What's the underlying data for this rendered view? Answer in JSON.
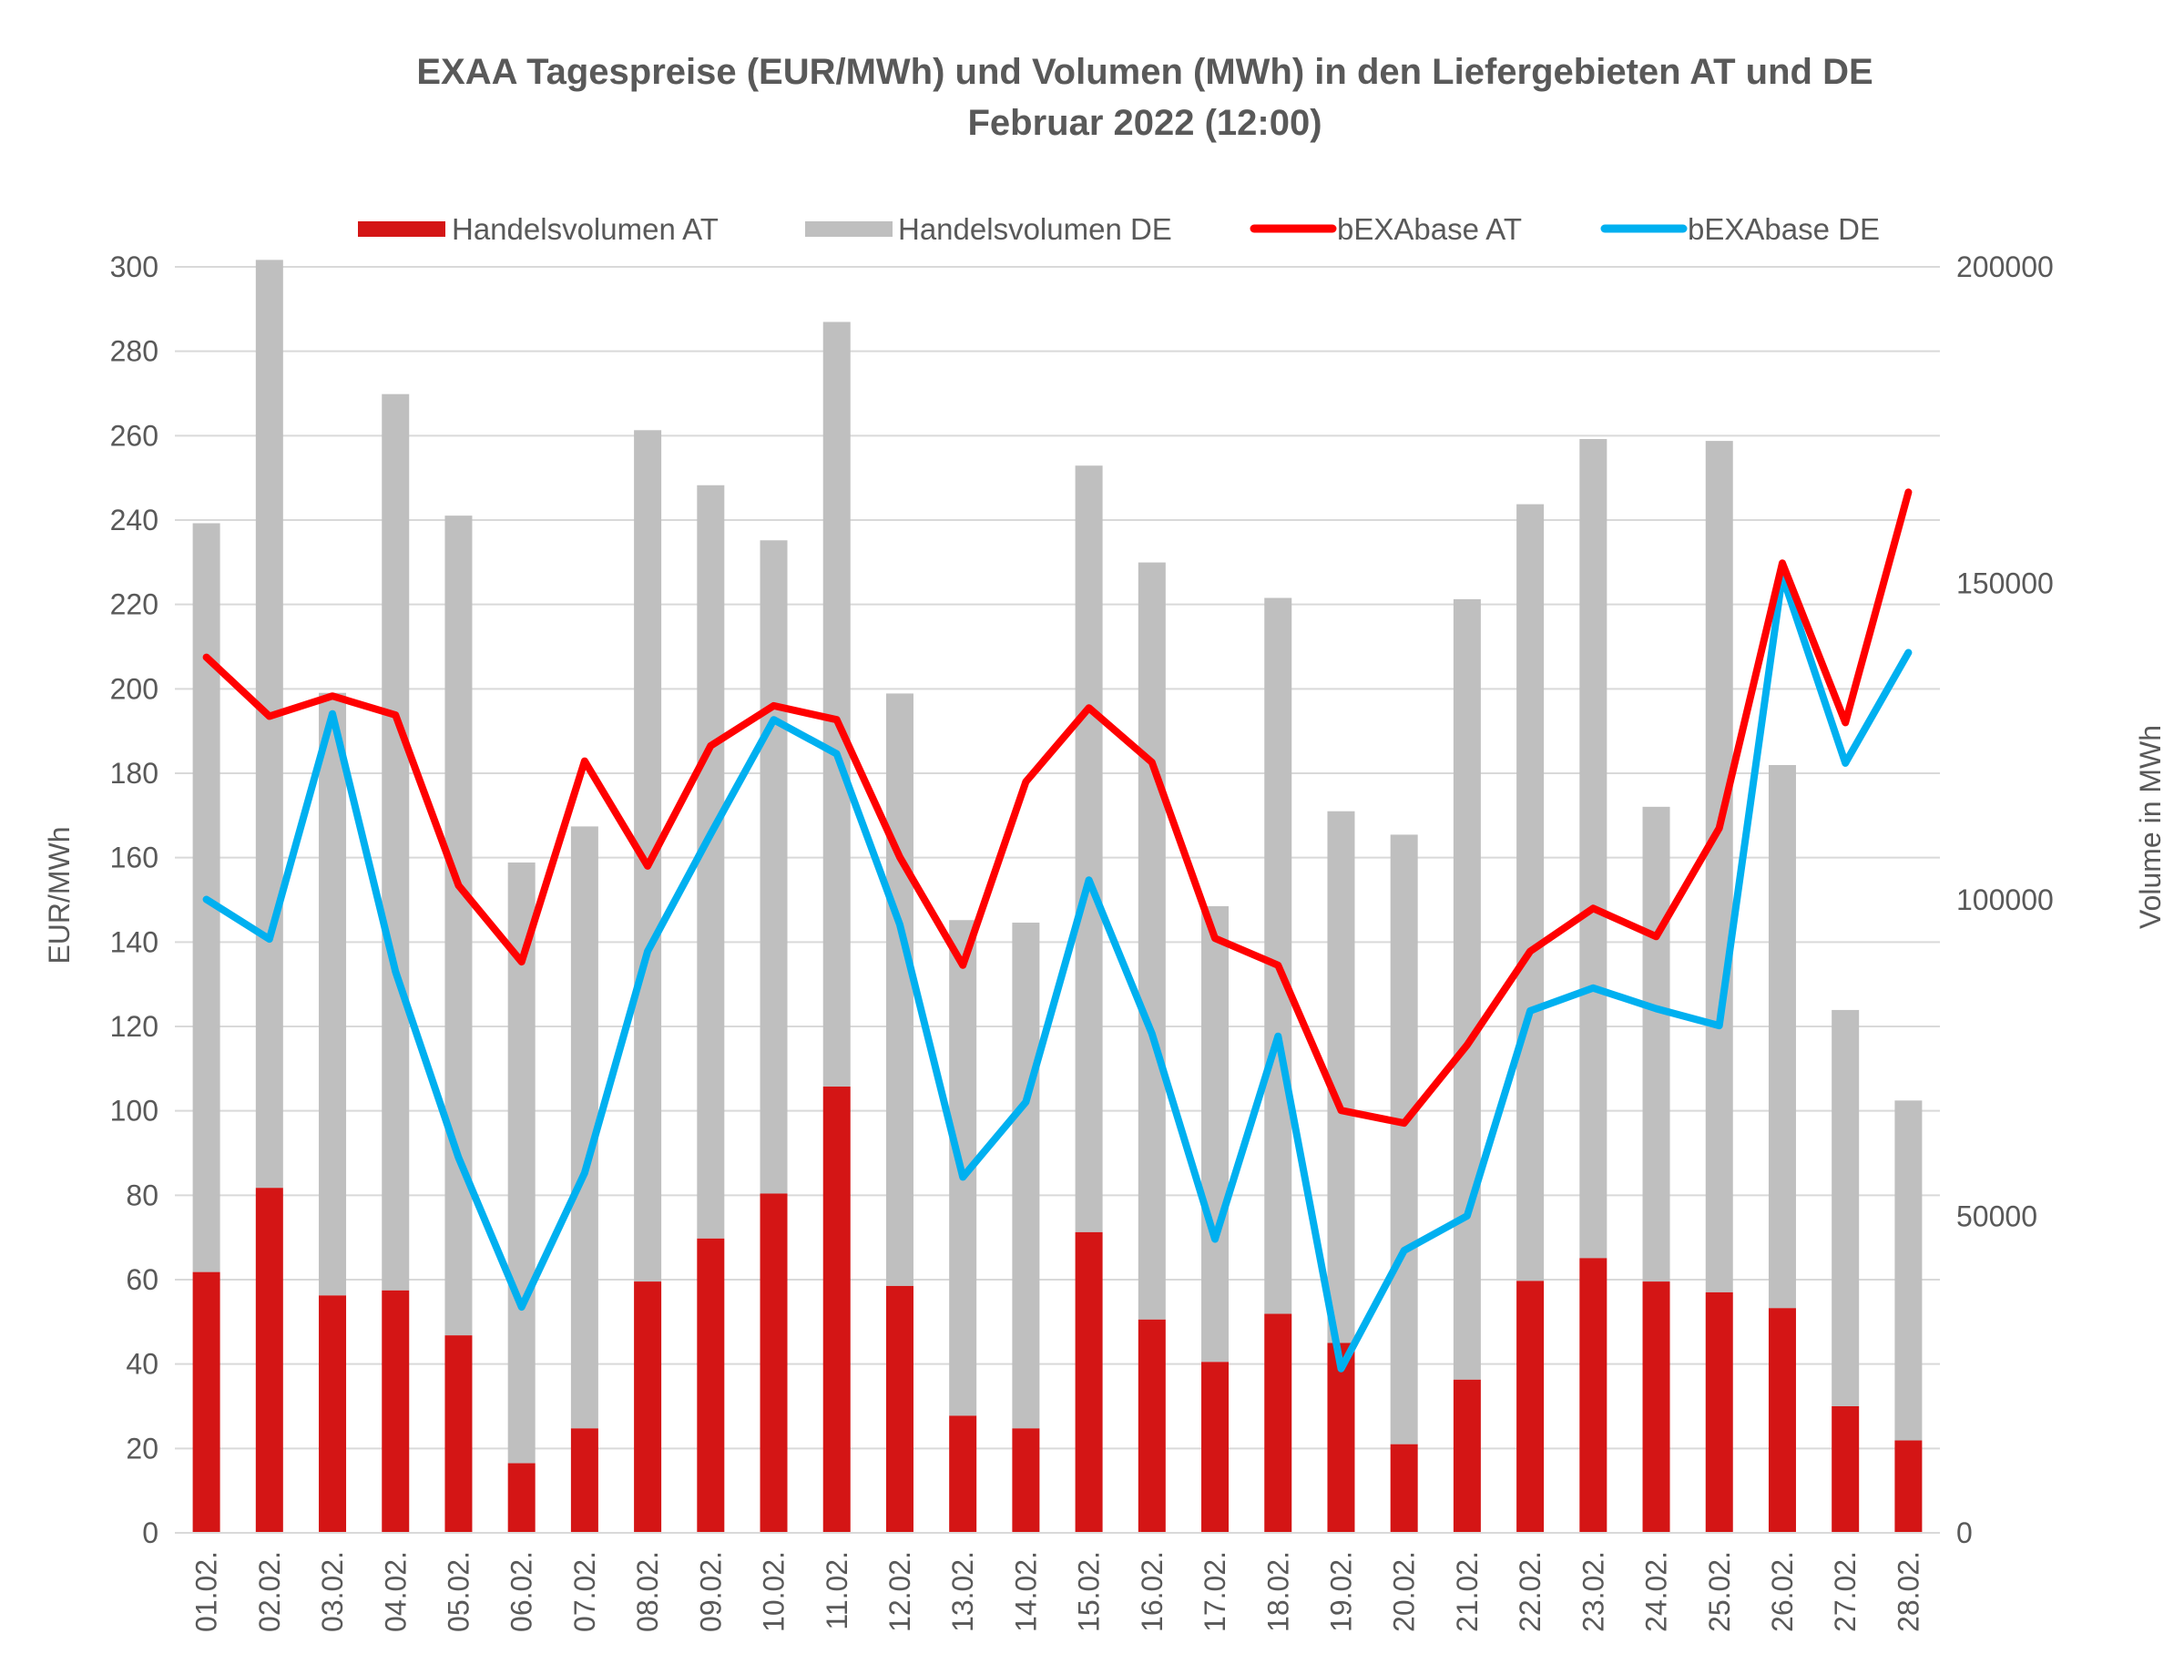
{
  "chart_data": {
    "type": "bar",
    "title": "EXAA Tagespreise (EUR/MWh) und Volumen (MWh) in den Liefergebieten AT und DE",
    "subtitle": "Februar 2022 (12:00)",
    "ylabel_left": "EUR/MWh",
    "ylabel_right": "Volume in MWh",
    "ylim_left": [
      0,
      300
    ],
    "ylim_right": [
      0,
      200000
    ],
    "yticks_left": [
      "0",
      "20",
      "40",
      "60",
      "80",
      "100",
      "120",
      "140",
      "160",
      "180",
      "200",
      "220",
      "240",
      "260",
      "280",
      "300"
    ],
    "yticks_right": [
      "0",
      "50000",
      "100000",
      "150000",
      "200000"
    ],
    "grid": true,
    "legend_position": "top",
    "categories": [
      "01.02.",
      "02.02.",
      "03.02.",
      "04.02.",
      "05.02.",
      "06.02.",
      "07.02.",
      "08.02.",
      "09.02.",
      "10.02.",
      "11.02.",
      "12.02.",
      "13.02.",
      "14.02.",
      "15.02.",
      "16.02.",
      "17.02.",
      "18.02.",
      "19.02.",
      "20.02.",
      "21.02.",
      "22.02.",
      "23.02.",
      "24.02.",
      "25.02.",
      "26.02.",
      "27.02.",
      "28.02."
    ],
    "series": [
      {
        "name": "Handelsvolumen AT",
        "kind": "bar",
        "axis": "right",
        "color": "#d41515",
        "values": [
          41200,
          54500,
          37500,
          38300,
          31200,
          11000,
          16500,
          39700,
          46500,
          53600,
          70500,
          39000,
          18500,
          16500,
          47500,
          33700,
          27000,
          34600,
          30000,
          14000,
          24200,
          39800,
          43400,
          39700,
          38000,
          35500,
          20000,
          14600
        ]
      },
      {
        "name": "Handelsvolumen DE",
        "kind": "bar",
        "axis": "right",
        "color": "#bfbfbf",
        "values": [
          118300,
          146600,
          95200,
          141600,
          129500,
          94900,
          95100,
          134500,
          119000,
          103200,
          120800,
          93600,
          78300,
          79900,
          121100,
          119600,
          72000,
          113100,
          84000,
          96300,
          123300,
          122700,
          129400,
          75000,
          134500,
          85800,
          62600,
          53700
        ]
      },
      {
        "name": "bEXAbase AT",
        "kind": "line",
        "axis": "left",
        "color": "#ff0000",
        "values": [
          207.5,
          193.5,
          198.3,
          193.8,
          153.4,
          135.3,
          182.9,
          158.0,
          186.5,
          196.0,
          192.7,
          160.1,
          134.5,
          178.0,
          195.5,
          182.6,
          140.9,
          134.5,
          100.1,
          97.1,
          115.6,
          137.8,
          148.0,
          141.3,
          167.0,
          229.8,
          192.0,
          246.6
        ]
      },
      {
        "name": "bEXAbase DE",
        "kind": "line",
        "axis": "left",
        "color": "#00b0f0",
        "values": [
          150.1,
          140.7,
          194.1,
          133.0,
          88.9,
          53.5,
          85.3,
          137.8,
          165.6,
          192.7,
          184.6,
          144.1,
          84.3,
          102.1,
          154.7,
          118.3,
          69.6,
          117.7,
          38.9,
          66.9,
          75.1,
          123.7,
          129.1,
          124.2,
          120.2,
          226.8,
          182.4,
          208.6
        ]
      }
    ]
  }
}
